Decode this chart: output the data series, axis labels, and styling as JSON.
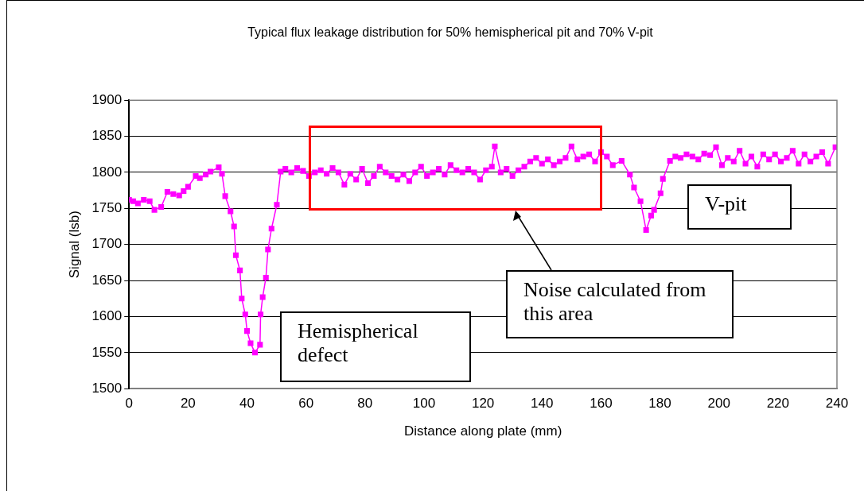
{
  "chart_data": {
    "type": "line",
    "title": "Typical flux leakage distribution for 50% hemispherical pit and 70% V-pit",
    "xlabel": "Distance along plate (mm)",
    "ylabel": "Signal (lsb)",
    "xlim": [
      0,
      240
    ],
    "xticks": [
      0,
      20,
      40,
      60,
      80,
      100,
      120,
      140,
      160,
      180,
      200,
      220,
      240
    ],
    "ylim": [
      1500,
      1900
    ],
    "yticks": [
      1500,
      1550,
      1600,
      1650,
      1700,
      1750,
      1800,
      1850,
      1900
    ],
    "grid": "y",
    "legend": false,
    "marker": "square",
    "line_style": "solid",
    "annotations": [
      "Hemispherical defect",
      "Noise calculated from this area",
      "V-pit"
    ],
    "series": [
      {
        "color": "#ff00ff",
        "x": [
          0,
          1.4,
          3,
          5,
          7,
          8.6,
          10.9,
          13,
          15,
          17,
          18.5,
          20,
          22.6,
          24,
          26,
          27.6,
          30.4,
          31.5,
          32.6,
          34.4,
          35.6,
          36.2,
          37.6,
          38.2,
          39.4,
          40,
          41.2,
          42.7,
          44.4,
          44.6,
          45.3,
          46.4,
          47.1,
          48.3,
          50.1,
          51.4,
          53,
          55,
          57,
          59,
          61,
          63,
          65,
          67,
          69,
          71,
          73,
          75,
          77,
          79,
          81,
          83,
          85,
          87,
          89,
          91,
          93,
          95,
          97,
          99,
          101,
          103,
          105,
          107,
          109,
          111,
          113,
          115,
          117,
          119,
          121,
          123,
          124,
          126,
          128,
          130,
          132,
          134,
          136,
          138,
          140,
          142,
          144,
          146,
          148,
          150,
          152,
          154,
          156,
          158,
          160,
          162,
          164,
          167,
          169.8,
          171.2,
          173.4,
          175.3,
          177,
          178,
          180.2,
          181,
          183.4,
          185.2,
          187,
          189,
          191,
          193,
          195,
          197,
          199,
          201,
          203,
          205,
          207,
          209,
          211,
          213,
          215,
          217,
          219,
          221,
          223,
          225,
          227,
          229,
          231,
          233,
          235,
          237,
          239.5
        ],
        "values": [
          1762,
          1760,
          1757,
          1762,
          1760,
          1748,
          1752,
          1773,
          1770,
          1768,
          1774,
          1780,
          1795,
          1792,
          1797,
          1801,
          1807,
          1798,
          1767,
          1746,
          1725,
          1685,
          1664,
          1625,
          1603,
          1580,
          1563,
          1550,
          1561,
          1603,
          1627,
          1654,
          1693,
          1722,
          1755,
          1801,
          1805,
          1800,
          1806,
          1802,
          1795,
          1800,
          1803,
          1798,
          1806,
          1800,
          1783,
          1798,
          1790,
          1805,
          1785,
          1795,
          1808,
          1800,
          1795,
          1790,
          1797,
          1788,
          1800,
          1808,
          1795,
          1800,
          1805,
          1797,
          1810,
          1803,
          1800,
          1805,
          1800,
          1790,
          1803,
          1808,
          1836,
          1800,
          1805,
          1795,
          1803,
          1808,
          1815,
          1820,
          1812,
          1818,
          1810,
          1815,
          1820,
          1836,
          1818,
          1822,
          1825,
          1815,
          1828,
          1822,
          1810,
          1816,
          1797,
          1779,
          1760,
          1720,
          1740,
          1748,
          1771,
          1791,
          1816,
          1822,
          1820,
          1825,
          1822,
          1818,
          1826,
          1824,
          1835,
          1810,
          1820,
          1815,
          1830,
          1812,
          1822,
          1808,
          1825,
          1818,
          1825,
          1815,
          1820,
          1830,
          1812,
          1825,
          1815,
          1822,
          1828,
          1812,
          1835
        ]
      }
    ]
  }
}
